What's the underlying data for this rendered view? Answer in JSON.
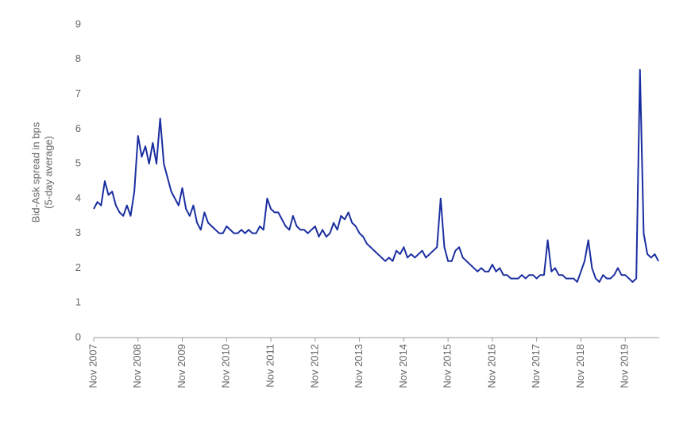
{
  "chart_data": {
    "type": "line",
    "ylabel": [
      "Bid-Ask spread in bps",
      "(5-day average)"
    ],
    "color": "#1a2ea0",
    "x": [
      "2007-11",
      "2007-12",
      "2008-01",
      "2008-02",
      "2008-03",
      "2008-04",
      "2008-05",
      "2008-06",
      "2008-07",
      "2008-08",
      "2008-09",
      "2008-10",
      "2008-11",
      "2008-12",
      "2009-01",
      "2009-02",
      "2009-03",
      "2009-04",
      "2009-05",
      "2009-06",
      "2009-07",
      "2009-08",
      "2009-09",
      "2009-10",
      "2009-11",
      "2009-12",
      "2010-01",
      "2010-02",
      "2010-03",
      "2010-04",
      "2010-05",
      "2010-06",
      "2010-07",
      "2010-08",
      "2010-09",
      "2010-10",
      "2010-11",
      "2010-12",
      "2011-01",
      "2011-02",
      "2011-03",
      "2011-04",
      "2011-05",
      "2011-06",
      "2011-07",
      "2011-08",
      "2011-09",
      "2011-10",
      "2011-11",
      "2011-12",
      "2012-01",
      "2012-02",
      "2012-03",
      "2012-04",
      "2012-05",
      "2012-06",
      "2012-07",
      "2012-08",
      "2012-09",
      "2012-10",
      "2012-11",
      "2012-12",
      "2013-01",
      "2013-02",
      "2013-03",
      "2013-04",
      "2013-05",
      "2013-06",
      "2013-07",
      "2013-08",
      "2013-09",
      "2013-10",
      "2013-11",
      "2013-12",
      "2014-01",
      "2014-02",
      "2014-03",
      "2014-04",
      "2014-05",
      "2014-06",
      "2014-07",
      "2014-08",
      "2014-09",
      "2014-10",
      "2014-11",
      "2014-12",
      "2015-01",
      "2015-02",
      "2015-03",
      "2015-04",
      "2015-05",
      "2015-06",
      "2015-07",
      "2015-08",
      "2015-09",
      "2015-10",
      "2015-11",
      "2015-12",
      "2016-01",
      "2016-02",
      "2016-03",
      "2016-04",
      "2016-05",
      "2016-06",
      "2016-07",
      "2016-08",
      "2016-09",
      "2016-10",
      "2016-11",
      "2016-12",
      "2017-01",
      "2017-02",
      "2017-03",
      "2017-04",
      "2017-05",
      "2017-06",
      "2017-07",
      "2017-08",
      "2017-09",
      "2017-10",
      "2017-11",
      "2017-12",
      "2018-01",
      "2018-02",
      "2018-03",
      "2018-04",
      "2018-05",
      "2018-06",
      "2018-07",
      "2018-08",
      "2018-09",
      "2018-10",
      "2018-11",
      "2018-12",
      "2019-01",
      "2019-02",
      "2019-03",
      "2019-04",
      "2019-05",
      "2019-06",
      "2019-07",
      "2019-08",
      "2019-09",
      "2019-10",
      "2019-11",
      "2019-12",
      "2020-01",
      "2020-02",
      "2020-03",
      "2020-04",
      "2020-05",
      "2020-06",
      "2020-07",
      "2020-08"
    ],
    "values": [
      3.7,
      3.9,
      3.8,
      4.5,
      4.1,
      4.2,
      3.8,
      3.6,
      3.5,
      3.8,
      3.5,
      4.2,
      5.8,
      5.2,
      5.5,
      5.0,
      5.6,
      5.0,
      6.3,
      5.0,
      4.6,
      4.2,
      4.0,
      3.8,
      4.3,
      3.7,
      3.5,
      3.8,
      3.3,
      3.1,
      3.6,
      3.3,
      3.2,
      3.1,
      3.0,
      3.0,
      3.2,
      3.1,
      3.0,
      3.0,
      3.1,
      3.0,
      3.1,
      3.0,
      3.0,
      3.2,
      3.1,
      4.0,
      3.7,
      3.6,
      3.6,
      3.4,
      3.2,
      3.1,
      3.5,
      3.2,
      3.1,
      3.1,
      3.0,
      3.1,
      3.2,
      2.9,
      3.1,
      2.9,
      3.0,
      3.3,
      3.1,
      3.5,
      3.4,
      3.6,
      3.3,
      3.2,
      3.0,
      2.9,
      2.7,
      2.6,
      2.5,
      2.4,
      2.3,
      2.2,
      2.3,
      2.2,
      2.5,
      2.4,
      2.6,
      2.3,
      2.4,
      2.3,
      2.4,
      2.5,
      2.3,
      2.4,
      2.5,
      2.6,
      4.0,
      2.6,
      2.2,
      2.2,
      2.5,
      2.6,
      2.3,
      2.2,
      2.1,
      2.0,
      1.9,
      2.0,
      1.9,
      1.9,
      2.1,
      1.9,
      2.0,
      1.8,
      1.8,
      1.7,
      1.7,
      1.7,
      1.8,
      1.7,
      1.8,
      1.8,
      1.7,
      1.8,
      1.8,
      2.8,
      1.9,
      2.0,
      1.8,
      1.8,
      1.7,
      1.7,
      1.7,
      1.6,
      1.9,
      2.2,
      2.8,
      2.0,
      1.7,
      1.6,
      1.8,
      1.7,
      1.7,
      1.8,
      2.0,
      1.8,
      1.8,
      1.7,
      1.6,
      1.7,
      7.7,
      3.0,
      2.4,
      2.3,
      2.4,
      2.2
    ],
    "xlim": [
      "2007-11",
      "2020-08"
    ],
    "xticks": [
      {
        "value": "2007-11",
        "label": "Nov 2007"
      },
      {
        "value": "2008-11",
        "label": "Nov 2008"
      },
      {
        "value": "2009-11",
        "label": "Nov 2009"
      },
      {
        "value": "2010-11",
        "label": "Nov 2010"
      },
      {
        "value": "2011-11",
        "label": "Nov 2011"
      },
      {
        "value": "2012-11",
        "label": "Nov 2012"
      },
      {
        "value": "2013-11",
        "label": "Nov 2013"
      },
      {
        "value": "2014-11",
        "label": "Nov 2014"
      },
      {
        "value": "2015-11",
        "label": "Nov 2015"
      },
      {
        "value": "2016-11",
        "label": "Nov 2016"
      },
      {
        "value": "2017-11",
        "label": "Nov 2017"
      },
      {
        "value": "2018-11",
        "label": "Nov 2018"
      },
      {
        "value": "2019-11",
        "label": "Nov 2019"
      }
    ],
    "ylim": [
      0,
      9
    ],
    "yticks": [
      0,
      1,
      2,
      3,
      4,
      5,
      6,
      7,
      8,
      9
    ],
    "grid": false
  }
}
